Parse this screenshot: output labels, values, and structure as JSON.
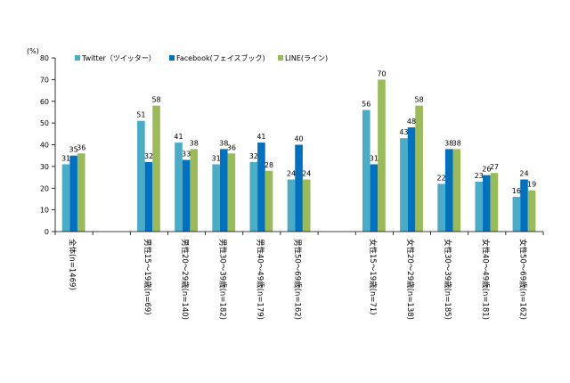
{
  "chart_data": {
    "type": "bar",
    "unit_label": "(%)",
    "ylim": [
      0,
      80
    ],
    "yticks": [
      0,
      10,
      20,
      30,
      40,
      50,
      60,
      70,
      80
    ],
    "grid": false,
    "legend_position": "top",
    "categories": [
      "全体(n=1469)",
      "",
      "男性15～19歳(n=69)",
      "男性20～29歳(n=140)",
      "男性30～39歳(n=182)",
      "男性40～49歳(n=179)",
      "男性50～69歳(n=162)",
      "",
      "女性15～19歳(n=71)",
      "女性20～29歳(n=138)",
      "女性30～39歳(n=185)",
      "女性40～49歳(n=181)",
      "女性50～69歳(n=162)"
    ],
    "series": [
      {
        "name": "Twitter（ツイッター）",
        "color": "#4BACC6",
        "values": [
          31,
          null,
          51,
          41,
          31,
          32,
          24,
          null,
          56,
          43,
          22,
          23,
          16
        ]
      },
      {
        "name": "Facebook(フェイスブック)",
        "color": "#0070C0",
        "values": [
          35,
          null,
          32,
          33,
          38,
          41,
          40,
          null,
          31,
          48,
          38,
          26,
          24
        ]
      },
      {
        "name": "LINE(ライン)",
        "color": "#9BBB59",
        "values": [
          36,
          null,
          58,
          38,
          36,
          28,
          24,
          null,
          70,
          58,
          38,
          27,
          19
        ]
      }
    ]
  }
}
